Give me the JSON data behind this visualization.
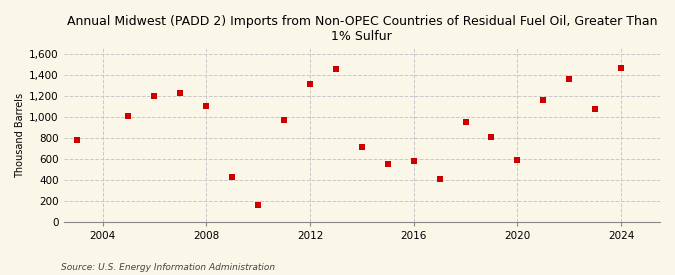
{
  "title": "Annual Midwest (PADD 2) Imports from Non-OPEC Countries of Residual Fuel Oil, Greater Than\n1% Sulfur",
  "ylabel": "Thousand Barrels",
  "source": "Source: U.S. Energy Information Administration",
  "background_color": "#faf6e8",
  "marker_color": "#cc0000",
  "years": [
    2003,
    2005,
    2006,
    2007,
    2008,
    2009,
    2010,
    2011,
    2012,
    2013,
    2014,
    2015,
    2016,
    2017,
    2018,
    2019,
    2020,
    2021,
    2022,
    2023,
    2024
  ],
  "values": [
    775,
    1010,
    1200,
    1225,
    1100,
    425,
    160,
    970,
    1310,
    1450,
    710,
    545,
    580,
    410,
    950,
    810,
    590,
    1160,
    1360,
    1070,
    1460
  ],
  "xlim": [
    2002.5,
    2025.5
  ],
  "ylim": [
    0,
    1650
  ],
  "yticks": [
    0,
    200,
    400,
    600,
    800,
    1000,
    1200,
    1400,
    1600
  ],
  "xticks": [
    2004,
    2008,
    2012,
    2016,
    2020,
    2024
  ],
  "grid_color": "#c8c8c8",
  "grid_style": "--",
  "marker_size": 5,
  "title_fontsize": 9,
  "ylabel_fontsize": 7,
  "tick_fontsize": 7.5,
  "source_fontsize": 6.5
}
